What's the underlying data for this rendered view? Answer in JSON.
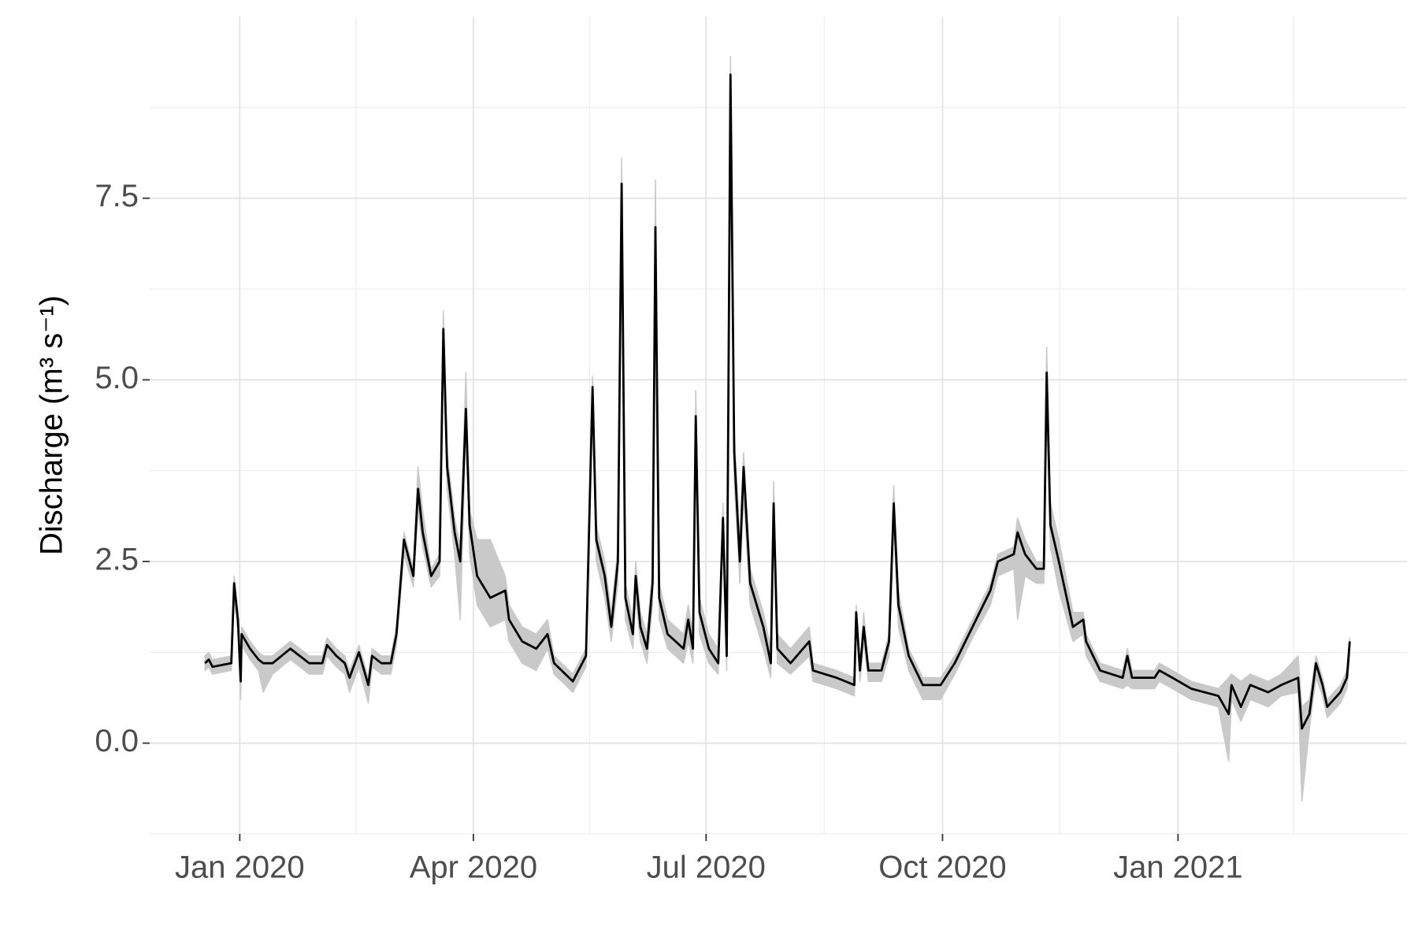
{
  "chart_data": {
    "type": "line",
    "ylabel": "Discharge (m³ s⁻¹)",
    "x": [
      2019.963,
      2019.967,
      2019.971,
      2019.991,
      2019.994,
      2019.998,
      2020.001,
      2020.002,
      2020.011,
      2020.02,
      2020.025,
      2020.035,
      2020.054,
      2020.074,
      2020.088,
      2020.093,
      2020.103,
      2020.112,
      2020.117,
      2020.127,
      2020.137,
      2020.141,
      2020.151,
      2020.161,
      2020.167,
      2020.175,
      2020.185,
      2020.19,
      2020.195,
      2020.204,
      2020.213,
      2020.217,
      2020.221,
      2020.229,
      2020.235,
      2020.241,
      2020.245,
      2020.253,
      2020.267,
      2020.283,
      2020.287,
      2020.301,
      2020.316,
      2020.328,
      2020.335,
      2020.355,
      2020.369,
      2020.376,
      2020.38,
      2020.389,
      2020.396,
      2020.403,
      2020.407,
      2020.411,
      2020.419,
      2020.422,
      2020.427,
      2020.434,
      2020.44,
      2020.443,
      2020.447,
      2020.456,
      2020.473,
      2020.478,
      2020.483,
      2020.486,
      2020.49,
      2020.5,
      2020.51,
      2020.515,
      2020.519,
      2020.523,
      2020.527,
      2020.533,
      2020.537,
      2020.544,
      2020.558,
      2020.566,
      2020.569,
      2020.573,
      2020.587,
      2020.607,
      2020.611,
      2020.636,
      2020.655,
      2020.657,
      2020.661,
      2020.665,
      2020.67,
      2020.684,
      2020.692,
      2020.697,
      2020.702,
      2020.713,
      2020.728,
      2020.747,
      2020.762,
      2020.781,
      2020.8,
      2020.808,
      2020.825,
      2020.829,
      2020.837,
      2020.849,
      2020.857,
      2020.86,
      2020.864,
      2020.873,
      2020.888,
      2020.899,
      2020.902,
      2020.917,
      2020.941,
      2020.946,
      2020.951,
      2020.975,
      2020.98,
      2020.994,
      2021.014,
      2021.043,
      2021.054,
      2021.057,
      2021.067,
      2021.077,
      2021.096,
      2021.11,
      2021.128,
      2021.132,
      2021.14,
      2021.147,
      2021.154,
      2021.159,
      2021.173,
      2021.18,
      2021.183
    ],
    "series": [
      {
        "color": "#000000",
        "values": [
          1.1,
          1.15,
          1.05,
          1.1,
          2.2,
          1.7,
          0.85,
          1.5,
          1.3,
          1.15,
          1.1,
          1.1,
          1.3,
          1.1,
          1.1,
          1.35,
          1.2,
          1.1,
          0.9,
          1.25,
          0.8,
          1.2,
          1.1,
          1.1,
          1.5,
          2.8,
          2.3,
          3.5,
          2.9,
          2.3,
          2.5,
          5.7,
          3.8,
          2.9,
          2.5,
          4.6,
          3.0,
          2.3,
          2.0,
          2.1,
          1.7,
          1.4,
          1.3,
          1.5,
          1.1,
          0.85,
          1.2,
          4.9,
          2.8,
          2.3,
          1.6,
          2.5,
          7.7,
          2.0,
          1.5,
          2.3,
          1.6,
          1.3,
          2.2,
          7.1,
          2.0,
          1.5,
          1.3,
          1.7,
          1.3,
          4.5,
          1.8,
          1.3,
          1.1,
          3.1,
          1.2,
          9.2,
          4.0,
          2.5,
          3.8,
          2.2,
          1.6,
          1.1,
          3.3,
          1.3,
          1.1,
          1.4,
          1.0,
          0.9,
          0.8,
          1.8,
          1.0,
          1.6,
          1.0,
          1.0,
          1.4,
          3.3,
          1.9,
          1.2,
          0.8,
          0.8,
          1.1,
          1.6,
          2.1,
          2.5,
          2.6,
          2.9,
          2.6,
          2.4,
          2.4,
          5.1,
          3.0,
          2.5,
          1.6,
          1.7,
          1.4,
          1.0,
          0.9,
          1.2,
          0.9,
          0.9,
          1.0,
          0.9,
          0.75,
          0.65,
          0.4,
          0.8,
          0.5,
          0.8,
          0.7,
          0.8,
          0.9,
          0.2,
          0.4,
          1.1,
          0.8,
          0.5,
          0.7,
          0.9,
          1.4
        ]
      }
    ],
    "band": {
      "color": "#c9c9c9",
      "upper": [
        1.2,
        1.25,
        1.15,
        1.2,
        2.3,
        1.8,
        1.0,
        1.6,
        1.4,
        1.25,
        1.2,
        1.2,
        1.4,
        1.2,
        1.2,
        1.45,
        1.3,
        1.2,
        1.0,
        1.35,
        0.9,
        1.3,
        1.2,
        1.2,
        1.6,
        2.9,
        2.4,
        3.8,
        3.2,
        2.4,
        2.6,
        5.95,
        4.0,
        3.1,
        2.7,
        5.1,
        3.2,
        2.8,
        2.8,
        2.3,
        1.9,
        1.6,
        1.5,
        1.7,
        1.2,
        0.95,
        1.3,
        5.05,
        3.0,
        2.5,
        1.8,
        2.7,
        8.05,
        2.2,
        1.7,
        2.5,
        1.8,
        1.5,
        2.4,
        7.75,
        2.2,
        1.7,
        1.5,
        1.9,
        1.5,
        4.85,
        2.0,
        1.5,
        1.3,
        3.3,
        1.4,
        9.45,
        4.3,
        2.8,
        4.0,
        2.4,
        1.8,
        1.3,
        3.6,
        1.5,
        1.3,
        1.6,
        1.1,
        1.0,
        0.9,
        1.9,
        1.1,
        1.8,
        1.1,
        1.1,
        1.5,
        3.55,
        2.1,
        1.3,
        0.9,
        0.9,
        1.2,
        1.7,
        2.2,
        2.6,
        2.7,
        3.1,
        2.8,
        2.5,
        2.5,
        5.45,
        3.3,
        2.8,
        1.8,
        1.8,
        1.5,
        1.1,
        1.0,
        1.3,
        1.0,
        1.0,
        1.1,
        1.0,
        0.85,
        0.75,
        0.9,
        0.95,
        0.85,
        0.95,
        0.85,
        0.95,
        1.2,
        0.5,
        0.6,
        1.2,
        0.9,
        0.6,
        0.8,
        1.0,
        1.45
      ],
      "lower": [
        1.0,
        1.05,
        0.95,
        1.0,
        2.0,
        1.55,
        0.6,
        1.35,
        1.15,
        1.0,
        0.7,
        0.95,
        1.15,
        0.95,
        0.95,
        1.2,
        1.05,
        0.95,
        0.7,
        1.05,
        0.55,
        1.05,
        0.95,
        0.95,
        1.35,
        2.6,
        2.15,
        3.2,
        2.7,
        2.15,
        2.3,
        5.4,
        3.5,
        2.6,
        1.7,
        4.3,
        2.6,
        1.9,
        1.6,
        1.7,
        1.4,
        1.1,
        1.0,
        1.3,
        0.95,
        0.7,
        1.05,
        4.7,
        2.5,
        2.0,
        1.4,
        2.2,
        7.4,
        1.7,
        1.3,
        2.0,
        1.4,
        1.1,
        1.9,
        6.8,
        1.7,
        1.3,
        1.1,
        1.4,
        1.1,
        4.2,
        1.5,
        1.1,
        0.95,
        2.8,
        1.0,
        8.9,
        3.6,
        2.2,
        3.4,
        1.9,
        1.3,
        0.9,
        3.0,
        1.1,
        0.95,
        1.2,
        0.85,
        0.75,
        0.65,
        1.6,
        0.85,
        1.4,
        0.85,
        0.85,
        1.2,
        3.0,
        1.6,
        1.0,
        0.6,
        0.6,
        0.95,
        1.45,
        1.9,
        2.3,
        2.4,
        1.7,
        2.3,
        2.2,
        2.2,
        4.7,
        2.7,
        2.1,
        1.4,
        1.5,
        1.2,
        0.85,
        0.75,
        0.8,
        0.75,
        0.75,
        0.85,
        0.75,
        0.6,
        0.5,
        -0.25,
        0.6,
        0.3,
        0.6,
        0.5,
        0.65,
        0.7,
        -0.8,
        0.2,
        0.9,
        0.65,
        0.35,
        0.55,
        0.75,
        1.2
      ]
    },
    "xlim": [
      2019.904,
      2021.244
    ],
    "ylim": [
      -1.25,
      10
    ],
    "xticks": [
      {
        "value": 2020.0,
        "label": "Jan 2020"
      },
      {
        "value": 2020.249,
        "label": "Apr 2020"
      },
      {
        "value": 2020.497,
        "label": "Jul 2020"
      },
      {
        "value": 2020.749,
        "label": "Oct 2020"
      },
      {
        "value": 2021.0,
        "label": "Jan 2021"
      }
    ],
    "yticks": [
      {
        "value": 0,
        "label": "0.0"
      },
      2.5,
      {
        "value": 5,
        "label": "5.0"
      },
      7.5
    ],
    "minor_xticks": [
      2020.124,
      2020.373,
      2020.623,
      2020.874,
      2021.123
    ],
    "minor_yticks": [
      -1.25,
      1.25,
      3.75,
      6.25,
      8.75
    ],
    "grid": true
  }
}
